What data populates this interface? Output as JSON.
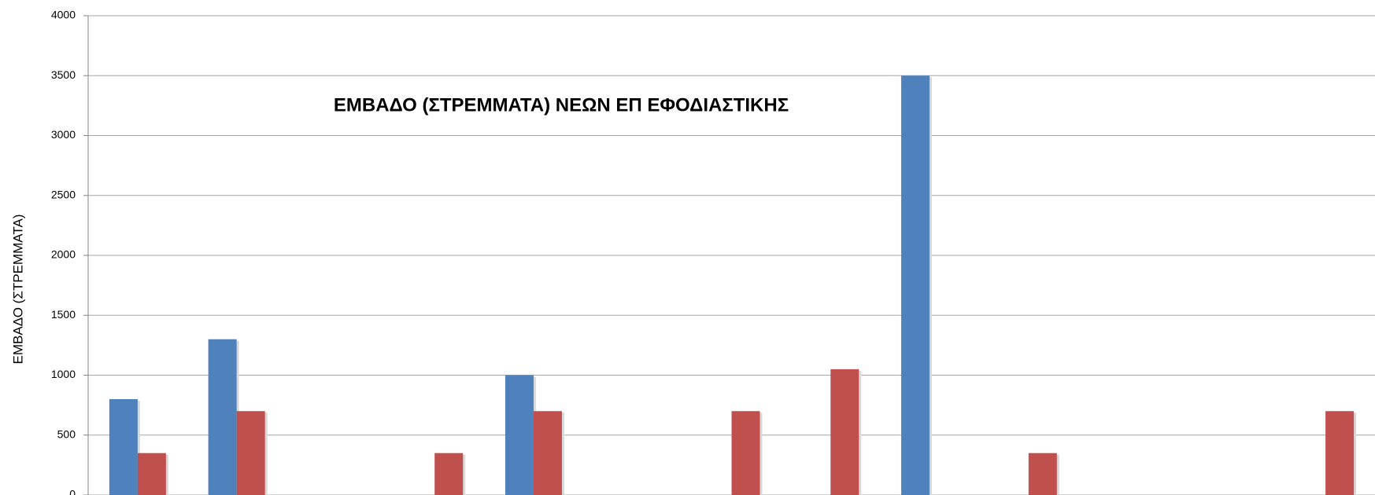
{
  "chart_data": {
    "type": "bar",
    "title": "ΕΜΒΑΔΟ (ΣΤΡΕΜΜΑΤΑ) ΝΕΩΝ ΕΠ ΕΦΟΔΙΑΣΤΙΚΗΣ",
    "y_label": "ΕΜΒΑΔΟ (ΣΤΡΕΜΜΑΤΑ)",
    "categories": [
      null,
      null,
      null,
      null,
      null,
      null,
      null,
      null,
      null,
      null,
      null,
      null,
      null
    ],
    "series": [
      {
        "color": "#4f81bd",
        "values": [
          800,
          1300,
          null,
          null,
          1000,
          null,
          null,
          null,
          3500,
          null,
          null,
          null,
          null
        ]
      },
      {
        "color": "#c0504d",
        "values": [
          350,
          700,
          null,
          350,
          700,
          null,
          700,
          1050,
          null,
          350,
          null,
          null,
          700
        ]
      }
    ],
    "ylim": [
      0,
      4000
    ],
    "yticks": [
      0,
      500,
      1000,
      1500,
      2000,
      2500,
      3000,
      3500,
      4000
    ],
    "grid": true
  }
}
